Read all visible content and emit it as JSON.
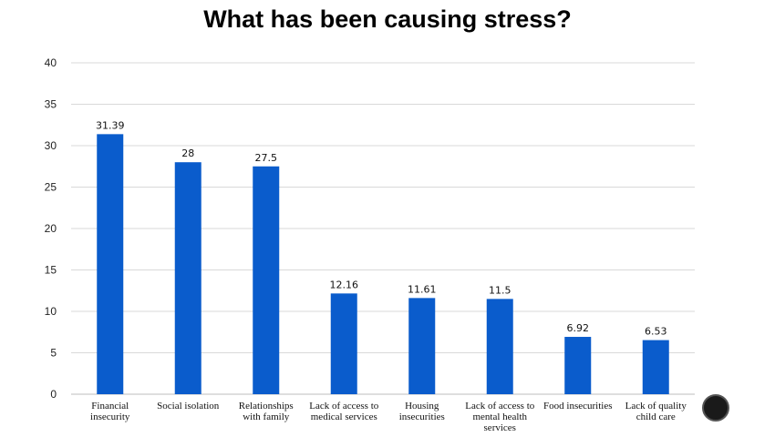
{
  "chart_data": {
    "type": "bar",
    "title": "What has been causing stress?",
    "categories": [
      [
        "Financial",
        "insecurity"
      ],
      [
        "Social isolation"
      ],
      [
        "Relationships",
        "with family"
      ],
      [
        "Lack of access to",
        "medical services"
      ],
      [
        "Housing",
        "insecurities"
      ],
      [
        "Lack of access to",
        "mental health",
        "services"
      ],
      [
        "Food insecurities"
      ],
      [
        "Lack of quality",
        "child care"
      ]
    ],
    "values": [
      31.39,
      28,
      27.5,
      12.16,
      11.61,
      11.5,
      6.92,
      6.53
    ],
    "value_labels": [
      "31.39",
      "28",
      "27.5",
      "12.16",
      "11.61",
      "11.5",
      "6.92",
      "6.53"
    ],
    "ylim": [
      0,
      40
    ],
    "yticks": [
      0,
      5,
      10,
      15,
      20,
      25,
      30,
      35,
      40
    ],
    "grid": true,
    "bar_color": "#0a5ccc",
    "grid_color": "#d9d9d9",
    "xlabel": "",
    "ylabel": ""
  }
}
